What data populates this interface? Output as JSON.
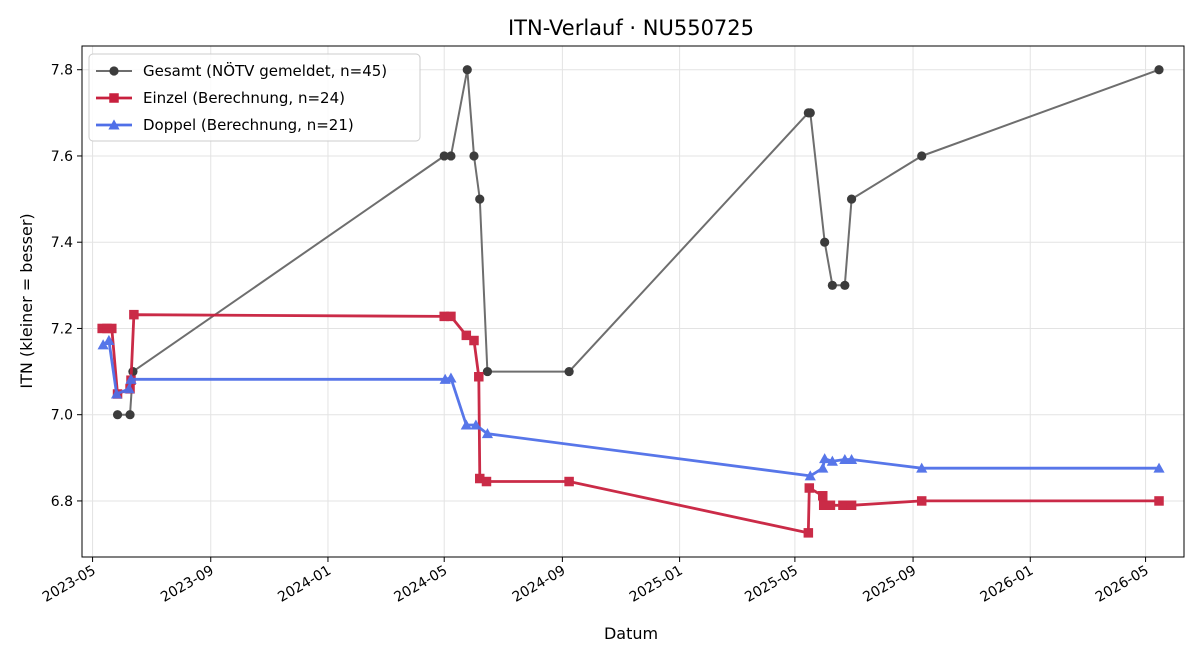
{
  "chart_data": {
    "type": "line",
    "title": "ITN-Verlauf · NU550725",
    "xlabel": "Datum",
    "ylabel": "ITN  (kleiner = besser)",
    "x_ticks": [
      "2023-05",
      "2023-09",
      "2024-01",
      "2024-05",
      "2024-09",
      "2025-01",
      "2025-05",
      "2025-09",
      "2026-01",
      "2026-05"
    ],
    "y_ticks": [
      "6.8",
      "7.0",
      "7.2",
      "7.4",
      "7.6",
      "7.8"
    ],
    "xlim": [
      "2023-04-20",
      "2026-06-10"
    ],
    "ylim": [
      6.67,
      7.855
    ],
    "grid": true,
    "legend_position": "top-left",
    "series": [
      {
        "name": "Gesamt (NÖTV gemeldet, n=45)",
        "color": "#6e6e6e",
        "marker": "circle",
        "points": [
          [
            "2023-05-27",
            7.0
          ],
          [
            "2023-06-09",
            7.0
          ],
          [
            "2023-06-12",
            7.1
          ],
          [
            "2024-05-01",
            7.6
          ],
          [
            "2024-05-08",
            7.6
          ],
          [
            "2024-05-25",
            7.8
          ],
          [
            "2024-06-01",
            7.6
          ],
          [
            "2024-06-07",
            7.5
          ],
          [
            "2024-06-15",
            7.1
          ],
          [
            "2024-09-08",
            7.1
          ],
          [
            "2025-05-15",
            7.7
          ],
          [
            "2025-05-17",
            7.7
          ],
          [
            "2025-06-01",
            7.4
          ],
          [
            "2025-06-09",
            7.3
          ],
          [
            "2025-06-22",
            7.3
          ],
          [
            "2025-06-29",
            7.5
          ],
          [
            "2025-09-10",
            7.6
          ],
          [
            "2026-05-15",
            7.8
          ]
        ]
      },
      {
        "name": "Einzel (Berechnung, n=24)",
        "color": "#c8203e",
        "marker": "square",
        "points": [
          [
            "2023-05-11",
            7.2
          ],
          [
            "2023-05-16",
            7.2
          ],
          [
            "2023-05-21",
            7.2
          ],
          [
            "2023-05-27",
            7.048
          ],
          [
            "2023-06-09",
            7.06
          ],
          [
            "2023-06-10",
            7.08
          ],
          [
            "2023-06-13",
            7.232
          ],
          [
            "2024-05-01",
            7.228
          ],
          [
            "2024-05-08",
            7.228
          ],
          [
            "2024-05-24",
            7.184
          ],
          [
            "2024-06-01",
            7.172
          ],
          [
            "2024-06-06",
            7.088
          ],
          [
            "2024-06-07",
            6.852
          ],
          [
            "2024-06-14",
            6.845
          ],
          [
            "2024-09-08",
            6.845
          ],
          [
            "2025-05-15",
            6.726
          ],
          [
            "2025-05-16",
            6.83
          ],
          [
            "2025-05-30",
            6.812
          ],
          [
            "2025-05-31",
            6.79
          ],
          [
            "2025-06-07",
            6.79
          ],
          [
            "2025-06-20",
            6.79
          ],
          [
            "2025-06-29",
            6.79
          ],
          [
            "2025-09-10",
            6.8
          ],
          [
            "2026-05-15",
            6.8
          ]
        ]
      },
      {
        "name": "Doppel (Berechnung, n=21)",
        "color": "#4f6fe8",
        "marker": "triangle",
        "points": [
          [
            "2023-05-12",
            7.162
          ],
          [
            "2023-05-18",
            7.172
          ],
          [
            "2023-05-26",
            7.048
          ],
          [
            "2023-06-08",
            7.06
          ],
          [
            "2023-06-10",
            7.082
          ],
          [
            "2024-05-02",
            7.082
          ],
          [
            "2024-05-08",
            7.085
          ],
          [
            "2024-05-24",
            6.976
          ],
          [
            "2024-06-03",
            6.976
          ],
          [
            "2024-06-15",
            6.956
          ],
          [
            "2025-05-17",
            6.858
          ],
          [
            "2025-05-30",
            6.876
          ],
          [
            "2025-06-01",
            6.898
          ],
          [
            "2025-06-09",
            6.892
          ],
          [
            "2025-06-22",
            6.896
          ],
          [
            "2025-06-29",
            6.896
          ],
          [
            "2025-09-10",
            6.876
          ],
          [
            "2026-05-15",
            6.876
          ]
        ]
      }
    ]
  }
}
